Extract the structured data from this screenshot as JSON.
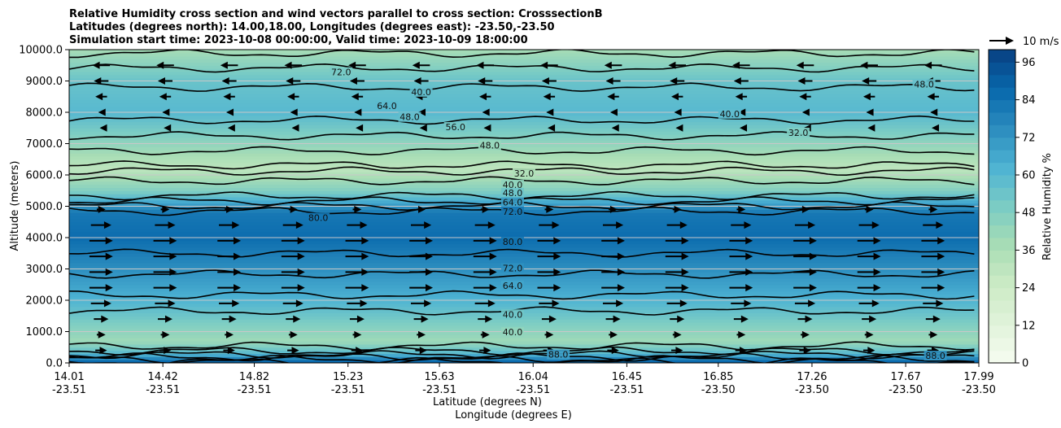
{
  "chart_data": {
    "type": "heatmap",
    "title_lines": [
      "Relative Humidity cross section and wind vectors parallel to cross section: CrosssectionB",
      "Latitudes (degrees north): 14.00,18.00, Longitudes (degrees east): -23.50,-23.50",
      "Simulation start time: 2023-10-08 00:00:00, Valid time: 2023-10-09 18:00:00"
    ],
    "ylabel": "Altitude (meters)",
    "xlabel_lat": "Latitude (degrees N)",
    "xlabel_lon": "Longitude (degrees E)",
    "ylim": [
      0,
      10000
    ],
    "y_ticks": [
      "0.0",
      "1000.0",
      "2000.0",
      "3000.0",
      "4000.0",
      "5000.0",
      "6000.0",
      "7000.0",
      "8000.0",
      "9000.0",
      "10000.0"
    ],
    "x_ticks_lat": [
      "14.01",
      "14.42",
      "14.82",
      "15.23",
      "15.63",
      "16.04",
      "16.45",
      "16.85",
      "17.26",
      "17.67",
      "17.99"
    ],
    "x_ticks_lon": [
      "-23.51",
      "-23.51",
      "-23.51",
      "-23.51",
      "-23.51",
      "-23.51",
      "-23.51",
      "-23.50",
      "-23.50",
      "-23.50",
      "-23.50"
    ],
    "colorbar": {
      "label": "Relative Humidity %",
      "ticks": [
        "0",
        "12",
        "24",
        "36",
        "48",
        "60",
        "72",
        "84",
        "96"
      ],
      "range": [
        0,
        100
      ],
      "colors": [
        "#f7fcf0",
        "#e0f3db",
        "#ccebc5",
        "#a8ddb5",
        "#7bccc4",
        "#4eb3d3",
        "#2b8cbe",
        "#0868ac",
        "#084081"
      ]
    },
    "quiver_key": "10 m/s",
    "grid": "horizontal",
    "humidity_profile": [
      {
        "alt": 0,
        "rh": 92
      },
      {
        "alt": 300,
        "rh": 60
      },
      {
        "alt": 700,
        "rh": 40
      },
      {
        "alt": 1200,
        "rh": 48
      },
      {
        "alt": 2000,
        "rh": 62
      },
      {
        "alt": 3000,
        "rh": 74
      },
      {
        "alt": 4000,
        "rh": 86
      },
      {
        "alt": 4800,
        "rh": 82
      },
      {
        "alt": 5500,
        "rh": 48
      },
      {
        "alt": 6200,
        "rh": 30
      },
      {
        "alt": 7000,
        "rh": 44
      },
      {
        "alt": 8000,
        "rh": 60
      },
      {
        "alt": 9000,
        "rh": 55
      },
      {
        "alt": 10000,
        "rh": 38
      }
    ],
    "contour_levels": [
      "24.0",
      "32.0",
      "40.0",
      "48.0",
      "56.0",
      "64.0",
      "72.0",
      "80.0",
      "88.0",
      "96.0"
    ],
    "contour_labels": [
      {
        "text": "72.0",
        "x": 15.2,
        "y": 9230
      },
      {
        "text": "64.0",
        "x": 15.4,
        "y": 8150
      },
      {
        "text": "40.0",
        "x": 15.55,
        "y": 8600
      },
      {
        "text": "48.0",
        "x": 15.5,
        "y": 7800
      },
      {
        "text": "56.0",
        "x": 15.7,
        "y": 7480
      },
      {
        "text": "48.0",
        "x": 15.85,
        "y": 6900
      },
      {
        "text": "32.0",
        "x": 16.0,
        "y": 6000
      },
      {
        "text": "40.0",
        "x": 15.95,
        "y": 5640
      },
      {
        "text": "48.0",
        "x": 15.95,
        "y": 5380
      },
      {
        "text": "64.0",
        "x": 15.95,
        "y": 5080
      },
      {
        "text": "72.0",
        "x": 15.95,
        "y": 4780
      },
      {
        "text": "80.0",
        "x": 15.1,
        "y": 4580
      },
      {
        "text": "80.0",
        "x": 15.95,
        "y": 3820
      },
      {
        "text": "72.0",
        "x": 15.95,
        "y": 2980
      },
      {
        "text": "64.0",
        "x": 15.95,
        "y": 2420
      },
      {
        "text": "40.0",
        "x": 15.95,
        "y": 1500
      },
      {
        "text": "40.0",
        "x": 15.95,
        "y": 930
      },
      {
        "text": "88.0",
        "x": 16.15,
        "y": 220
      },
      {
        "text": "32.0",
        "x": 17.2,
        "y": 7300
      },
      {
        "text": "40.0",
        "x": 16.9,
        "y": 7900
      },
      {
        "text": "48.0",
        "x": 17.75,
        "y": 8850
      },
      {
        "text": "88.0",
        "x": 17.8,
        "y": 180
      }
    ],
    "vectors": [
      {
        "alt": 400,
        "u": 4
      },
      {
        "alt": 900,
        "u": 3
      },
      {
        "alt": 1400,
        "u": 5
      },
      {
        "alt": 1900,
        "u": 7
      },
      {
        "alt": 2400,
        "u": 8
      },
      {
        "alt": 2900,
        "u": 8
      },
      {
        "alt": 3400,
        "u": 8
      },
      {
        "alt": 3900,
        "u": 8
      },
      {
        "alt": 4400,
        "u": 7
      },
      {
        "alt": 4900,
        "u": 3
      },
      {
        "alt": 7500,
        "u": -1
      },
      {
        "alt": 8000,
        "u": -2
      },
      {
        "alt": 8500,
        "u": -4
      },
      {
        "alt": 9000,
        "u": -5
      },
      {
        "alt": 9500,
        "u": -6
      }
    ]
  }
}
